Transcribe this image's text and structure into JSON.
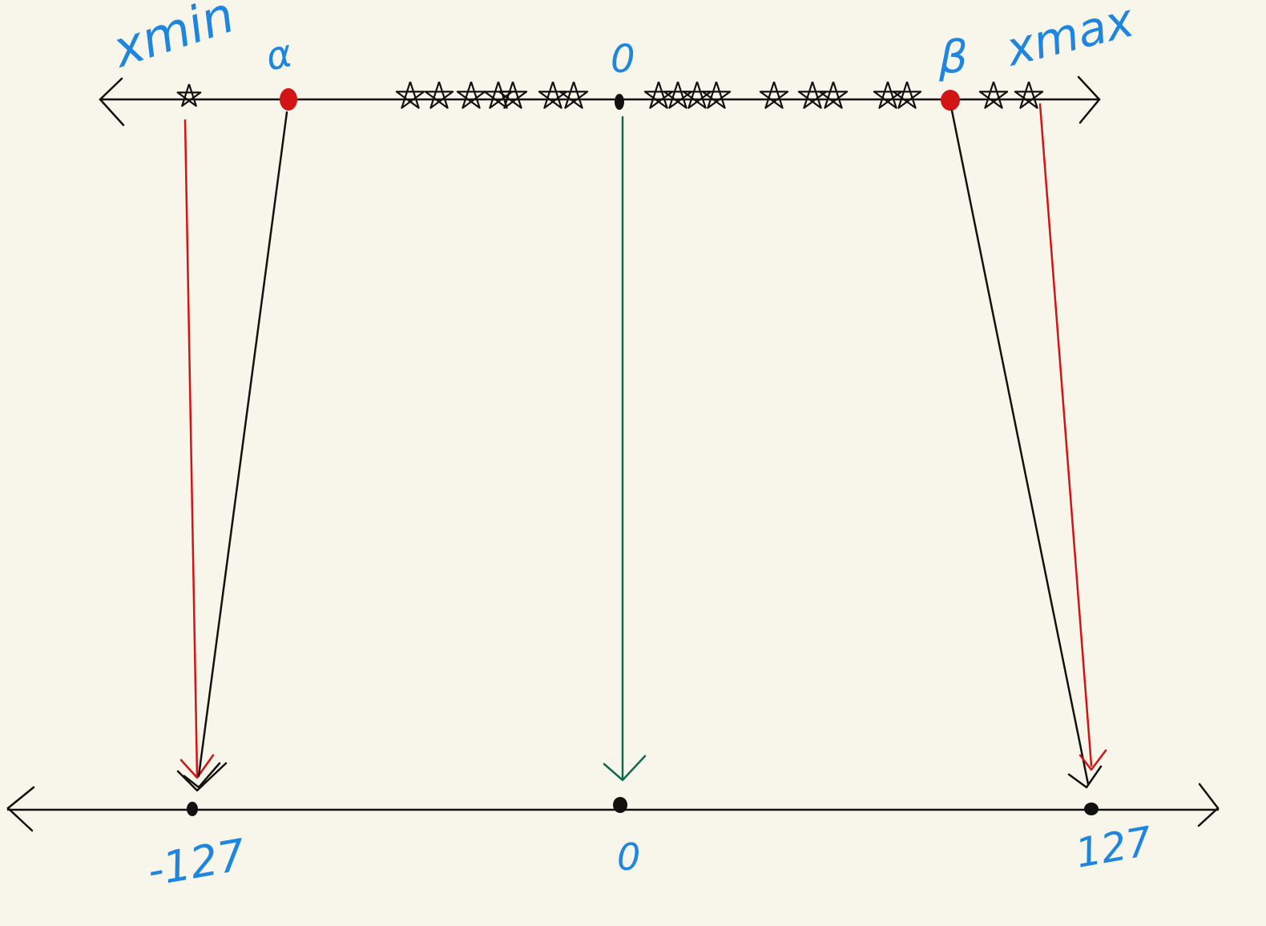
{
  "colors": {
    "background": "#f8f6ea",
    "ink": "#111111",
    "label_blue": "#1f86e0",
    "red": "#d11414",
    "green": "#0f6b4e"
  },
  "top_line": {
    "labels": {
      "x_min": "xmin",
      "alpha": "α",
      "zero": "0",
      "beta": "β",
      "x_max": "xmax"
    },
    "markers": {
      "alpha_marker": "red-dot",
      "beta_marker": "red-dot",
      "zero_marker": "black-dot",
      "data_points": "star-icon"
    }
  },
  "bottom_line": {
    "labels": {
      "neg_127": "-127",
      "zero": "0",
      "pos_127": "127"
    }
  },
  "mappings": [
    {
      "from": "x_min",
      "to": "-127",
      "color": "red"
    },
    {
      "from": "alpha",
      "to": "-127",
      "color": "black"
    },
    {
      "from": "0",
      "to": "0",
      "color": "green"
    },
    {
      "from": "beta",
      "to": "127",
      "color": "black"
    },
    {
      "from": "x_max",
      "to": "127",
      "color": "red"
    }
  ]
}
